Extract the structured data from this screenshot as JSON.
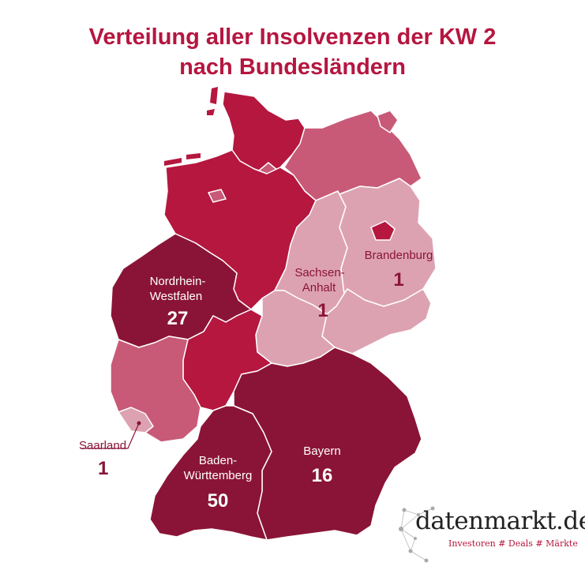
{
  "title": {
    "line1": "Verteilung aller Insolvenzen der KW 2",
    "line2": "nach Bundesländern"
  },
  "colors": {
    "title": "#b5163f",
    "dark": "#8a1437",
    "medium": "#b5173f",
    "light": "#c85a77",
    "pale": "#dda2b2",
    "border": "#ffffff"
  },
  "chart_data": {
    "type": "choropleth-map",
    "title": "Verteilung aller Insolvenzen der KW 2 nach Bundesländern",
    "regions": [
      {
        "name": "Nordrhein-Westfalen",
        "label_line1": "Nordrhein-",
        "label_line2": "Westfalen",
        "value": 27
      },
      {
        "name": "Baden-Württemberg",
        "label_line1": "Baden-",
        "label_line2": "Württemberg",
        "value": 50
      },
      {
        "name": "Bayern",
        "label_line1": "Bayern",
        "value": 16
      },
      {
        "name": "Brandenburg",
        "label_line1": "Brandenburg",
        "value": 1
      },
      {
        "name": "Sachsen-Anhalt",
        "label_line1": "Sachsen-",
        "label_line2": "Anhalt",
        "value": 1
      },
      {
        "name": "Saarland",
        "label_line1": "Saarland",
        "value": 1
      }
    ]
  },
  "logo": {
    "name": "datenmarkt.de",
    "tagline": "Investoren # Deals # Märkte"
  }
}
